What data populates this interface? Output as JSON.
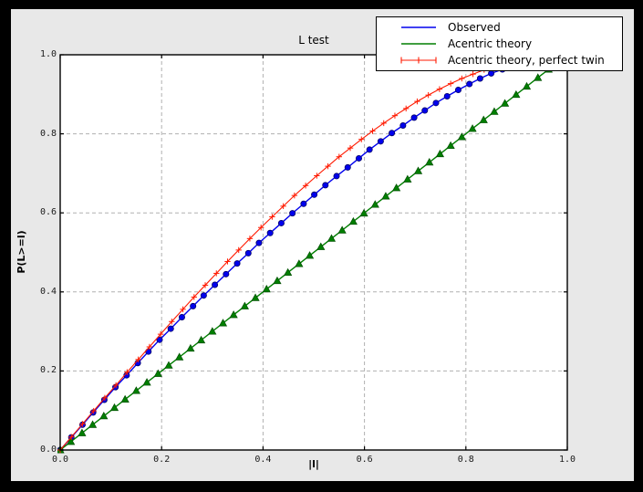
{
  "window": {
    "outer_bg": "#000000",
    "figure_bg": "#e8e8e8",
    "plot_bg": "#ffffff",
    "grid_color": "#b0b0b0",
    "spine_color": "#000000"
  },
  "chart_data": {
    "type": "line",
    "title": "L test",
    "xlabel": "|l|",
    "ylabel": "P(L>=l)",
    "xlim": [
      0.0,
      1.0
    ],
    "ylim": [
      0.0,
      1.0
    ],
    "xticks": [
      0.0,
      0.2,
      0.4,
      0.6,
      0.8,
      1.0
    ],
    "yticks": [
      0.0,
      0.2,
      0.4,
      0.6,
      0.8,
      1.0
    ],
    "xtick_labels": [
      "0.0",
      "0.2",
      "0.4",
      "0.6",
      "0.8",
      "1.0"
    ],
    "ytick_labels": [
      "0.0",
      "0.2",
      "0.4",
      "0.6",
      "0.8",
      "1.0"
    ],
    "grid": true,
    "grid_style": "dashed",
    "legend_position": "upper right, overlapping top of axes",
    "series": [
      {
        "name": "Observed",
        "color": "#0000ee",
        "edge_color": "#000066",
        "marker": "circle",
        "x": [
          0.0,
          0.022,
          0.044,
          0.065,
          0.087,
          0.109,
          0.131,
          0.153,
          0.174,
          0.196,
          0.218,
          0.24,
          0.262,
          0.283,
          0.305,
          0.327,
          0.349,
          0.371,
          0.392,
          0.414,
          0.436,
          0.458,
          0.48,
          0.501,
          0.523,
          0.545,
          0.567,
          0.589,
          0.61,
          0.632,
          0.654,
          0.676,
          0.698,
          0.719,
          0.741,
          0.763,
          0.785,
          0.807,
          0.828,
          0.85,
          0.872
        ],
        "y": [
          0.0,
          0.032,
          0.064,
          0.095,
          0.127,
          0.159,
          0.189,
          0.22,
          0.249,
          0.279,
          0.307,
          0.336,
          0.364,
          0.391,
          0.418,
          0.445,
          0.472,
          0.498,
          0.524,
          0.549,
          0.574,
          0.599,
          0.623,
          0.646,
          0.67,
          0.693,
          0.715,
          0.738,
          0.76,
          0.781,
          0.802,
          0.821,
          0.841,
          0.859,
          0.878,
          0.895,
          0.911,
          0.926,
          0.94,
          0.953,
          0.963
        ]
      },
      {
        "name": "Acentric theory",
        "color": "#007f00",
        "edge_color": "#004d00",
        "marker": "triangle-up",
        "x": [
          0.0,
          0.021,
          0.043,
          0.064,
          0.086,
          0.107,
          0.128,
          0.15,
          0.171,
          0.193,
          0.214,
          0.235,
          0.257,
          0.278,
          0.3,
          0.321,
          0.342,
          0.364,
          0.385,
          0.407,
          0.428,
          0.449,
          0.471,
          0.492,
          0.514,
          0.535,
          0.556,
          0.578,
          0.599,
          0.621,
          0.642,
          0.663,
          0.685,
          0.706,
          0.728,
          0.749,
          0.77,
          0.792,
          0.813,
          0.835,
          0.856,
          0.877,
          0.899,
          0.92,
          0.942,
          0.963
        ],
        "y": [
          0.0,
          0.021,
          0.043,
          0.064,
          0.086,
          0.107,
          0.128,
          0.15,
          0.171,
          0.193,
          0.214,
          0.235,
          0.257,
          0.278,
          0.3,
          0.321,
          0.342,
          0.364,
          0.385,
          0.407,
          0.428,
          0.449,
          0.471,
          0.492,
          0.514,
          0.535,
          0.556,
          0.578,
          0.599,
          0.621,
          0.642,
          0.663,
          0.685,
          0.706,
          0.728,
          0.749,
          0.77,
          0.792,
          0.813,
          0.835,
          0.856,
          0.877,
          0.899,
          0.92,
          0.942,
          0.963
        ]
      },
      {
        "name": "Acentric theory, perfect twin",
        "color": "#ff1a00",
        "edge_color": "#ff1a00",
        "marker": "plus",
        "x": [
          0.0,
          0.022,
          0.044,
          0.066,
          0.088,
          0.11,
          0.132,
          0.154,
          0.176,
          0.198,
          0.22,
          0.242,
          0.264,
          0.286,
          0.308,
          0.33,
          0.352,
          0.374,
          0.396,
          0.418,
          0.44,
          0.462,
          0.484,
          0.506,
          0.528,
          0.55,
          0.572,
          0.594,
          0.616,
          0.638,
          0.66,
          0.682,
          0.704,
          0.726,
          0.748,
          0.77,
          0.792,
          0.814,
          0.836
        ],
        "y": [
          0.0,
          0.033,
          0.066,
          0.099,
          0.132,
          0.164,
          0.197,
          0.229,
          0.261,
          0.293,
          0.325,
          0.356,
          0.387,
          0.417,
          0.447,
          0.477,
          0.506,
          0.535,
          0.563,
          0.59,
          0.617,
          0.644,
          0.669,
          0.694,
          0.718,
          0.742,
          0.764,
          0.786,
          0.807,
          0.827,
          0.846,
          0.864,
          0.882,
          0.898,
          0.913,
          0.927,
          0.94,
          0.951,
          0.962
        ]
      }
    ]
  }
}
